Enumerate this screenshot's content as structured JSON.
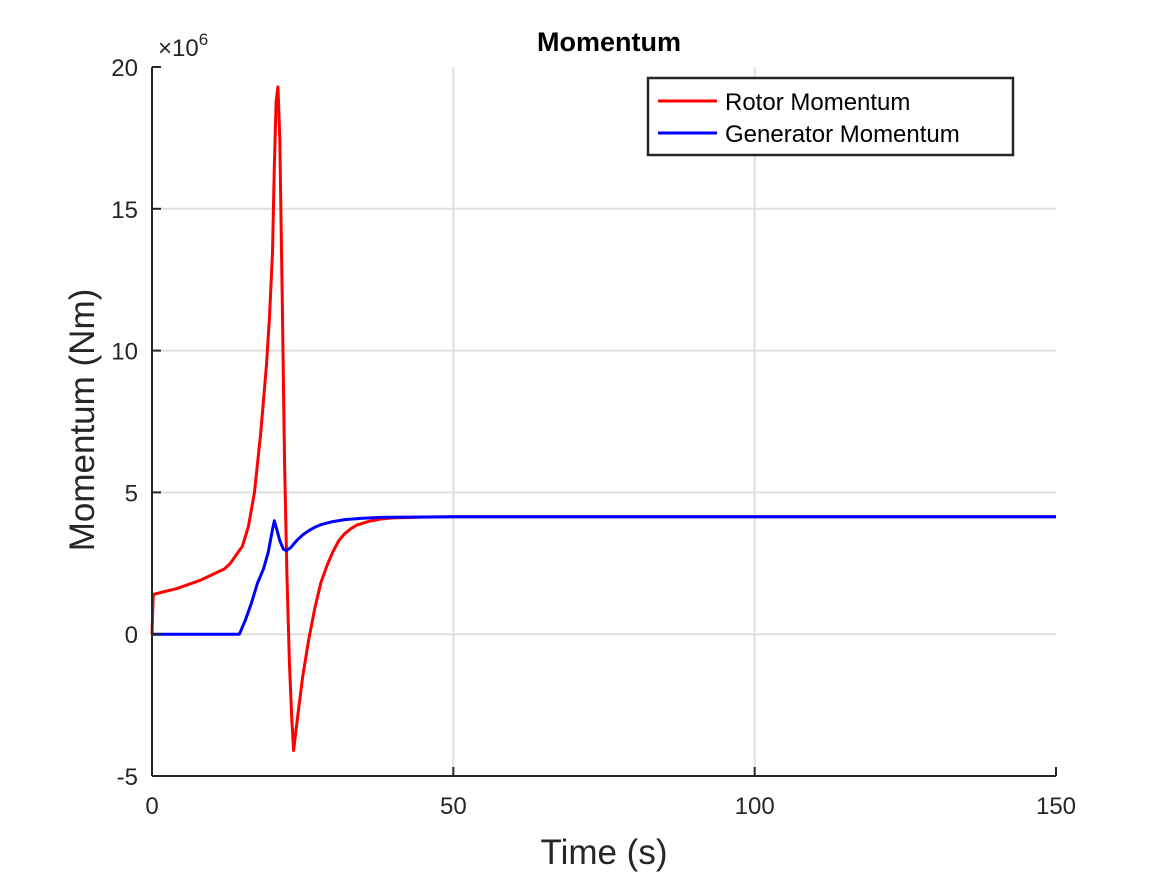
{
  "chart_data": {
    "type": "line",
    "title": "Momentum",
    "xlabel": "Time (s)",
    "ylabel": "Momentum (Nm)",
    "xlim": [
      0,
      150
    ],
    "ylim": [
      -5,
      20
    ],
    "y_multiplier_label": "×10",
    "y_multiplier_exponent": "6",
    "x_ticks": [
      0,
      50,
      100,
      150
    ],
    "x_tick_labels": [
      "0",
      "50",
      "100",
      "150"
    ],
    "y_ticks": [
      -5,
      0,
      5,
      10,
      15,
      20
    ],
    "y_tick_labels": [
      "-5",
      "0",
      "5",
      "10",
      "15",
      "20"
    ],
    "grid": true,
    "legend_position": "top-right",
    "series": [
      {
        "name": "Rotor Momentum",
        "color": "#ff0000",
        "points": [
          [
            0,
            0
          ],
          [
            0.2,
            1.4
          ],
          [
            2,
            1.5
          ],
          [
            4,
            1.6
          ],
          [
            6,
            1.75
          ],
          [
            8,
            1.9
          ],
          [
            10,
            2.1
          ],
          [
            12,
            2.3
          ],
          [
            13,
            2.5
          ],
          [
            14,
            2.8
          ],
          [
            15,
            3.1
          ],
          [
            16,
            3.8
          ],
          [
            17,
            5.0
          ],
          [
            18,
            7.0
          ],
          [
            19,
            9.5
          ],
          [
            19.5,
            11.2
          ],
          [
            20,
            13.5
          ],
          [
            20.3,
            16.5
          ],
          [
            20.6,
            18.8
          ],
          [
            20.9,
            19.3
          ],
          [
            21.2,
            17.5
          ],
          [
            21.6,
            12.0
          ],
          [
            22,
            6.0
          ],
          [
            22.4,
            2.0
          ],
          [
            22.8,
            -1.0
          ],
          [
            23.2,
            -3.0
          ],
          [
            23.5,
            -4.1
          ],
          [
            24,
            -3.2
          ],
          [
            25,
            -1.5
          ],
          [
            26,
            -0.2
          ],
          [
            27,
            0.9
          ],
          [
            28,
            1.8
          ],
          [
            29,
            2.4
          ],
          [
            30,
            2.9
          ],
          [
            31,
            3.3
          ],
          [
            32,
            3.55
          ],
          [
            33,
            3.72
          ],
          [
            34,
            3.85
          ],
          [
            36,
            3.98
          ],
          [
            38,
            4.06
          ],
          [
            40,
            4.1
          ],
          [
            45,
            4.13
          ],
          [
            50,
            4.14
          ],
          [
            75,
            4.14
          ],
          [
            100,
            4.14
          ],
          [
            125,
            4.14
          ],
          [
            150,
            4.14
          ]
        ]
      },
      {
        "name": "Generator Momentum",
        "color": "#0000ff",
        "points": [
          [
            0,
            0
          ],
          [
            5,
            0
          ],
          [
            10,
            0
          ],
          [
            14.5,
            0
          ],
          [
            15.5,
            0.5
          ],
          [
            16.5,
            1.1
          ],
          [
            17.5,
            1.8
          ],
          [
            18.5,
            2.3
          ],
          [
            19.3,
            2.9
          ],
          [
            20,
            3.7
          ],
          [
            20.3,
            4.0
          ],
          [
            20.7,
            3.7
          ],
          [
            21.2,
            3.3
          ],
          [
            21.8,
            3.0
          ],
          [
            22.3,
            2.95
          ],
          [
            23,
            3.05
          ],
          [
            24,
            3.3
          ],
          [
            25,
            3.5
          ],
          [
            26,
            3.65
          ],
          [
            27,
            3.77
          ],
          [
            28,
            3.86
          ],
          [
            30,
            3.97
          ],
          [
            32,
            4.04
          ],
          [
            35,
            4.09
          ],
          [
            38,
            4.12
          ],
          [
            42,
            4.13
          ],
          [
            50,
            4.14
          ],
          [
            75,
            4.14
          ],
          [
            100,
            4.14
          ],
          [
            125,
            4.14
          ],
          [
            150,
            4.14
          ]
        ]
      }
    ]
  }
}
